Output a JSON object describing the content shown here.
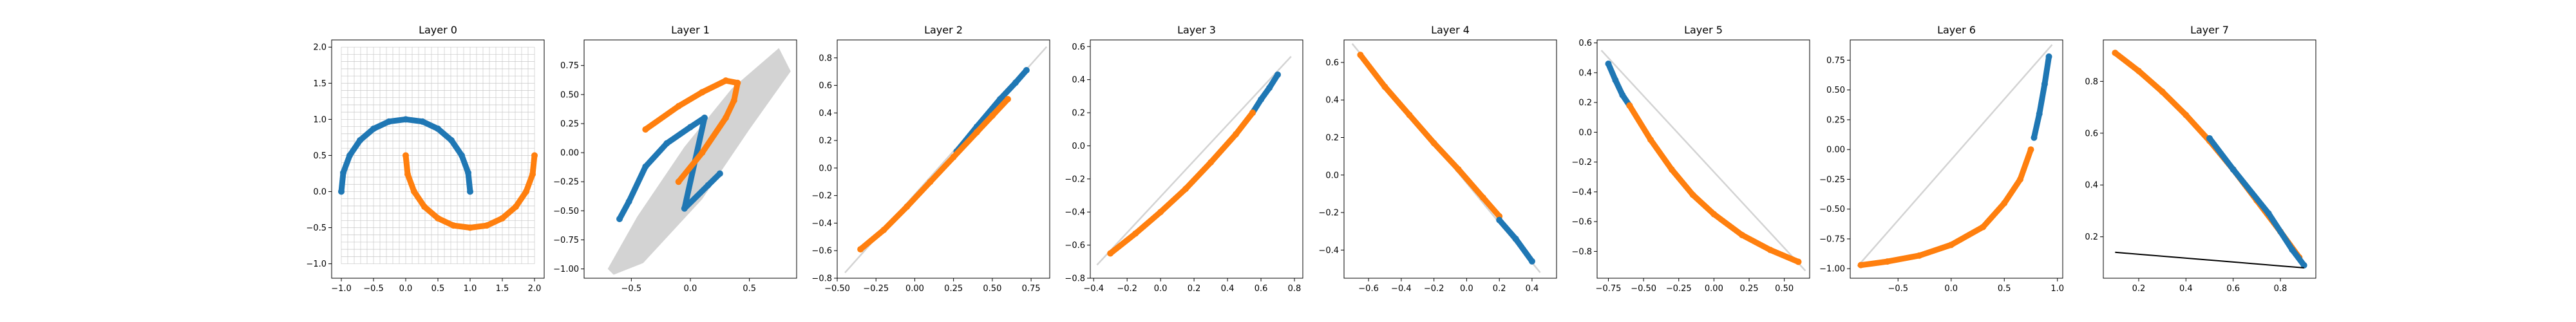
{
  "figure": {
    "background": "#ffffff"
  },
  "colors": {
    "class_a": "#1f77b4",
    "class_b": "#ff7f0e",
    "warped_region": "#d3d3d3",
    "grid": "#c8c8c8",
    "decision_line": "#000000"
  },
  "chart_data": [
    {
      "type": "scatter",
      "title": "Layer 0",
      "xlim": [
        -1.15,
        2.15
      ],
      "ylim": [
        -1.2,
        2.1
      ],
      "xticks": [
        -1.0,
        -0.5,
        0.0,
        0.5,
        1.0,
        1.5,
        2.0
      ],
      "xtick_labels": [
        "−1.0",
        "−0.5",
        "0.0",
        "0.5",
        "1.0",
        "1.5",
        "2.0"
      ],
      "yticks": [
        -1.0,
        -0.5,
        0.0,
        0.5,
        1.0,
        1.5,
        2.0
      ],
      "ytick_labels": [
        "−1.0",
        "−0.5",
        "0.0",
        "0.5",
        "1.0",
        "1.5",
        "2.0"
      ],
      "grid": {
        "shown": true,
        "x_range": [
          -1.0,
          2.0
        ],
        "y_range": [
          -1.0,
          2.0
        ],
        "step": 0.1
      },
      "series": [
        {
          "class": "a",
          "points": [
            [
              -1.0,
              0.0
            ],
            [
              -0.97,
              0.26
            ],
            [
              -0.87,
              0.5
            ],
            [
              -0.71,
              0.71
            ],
            [
              -0.5,
              0.87
            ],
            [
              -0.26,
              0.97
            ],
            [
              0.0,
              1.0
            ],
            [
              0.26,
              0.97
            ],
            [
              0.5,
              0.87
            ],
            [
              0.71,
              0.71
            ],
            [
              0.87,
              0.5
            ],
            [
              0.97,
              0.26
            ],
            [
              1.0,
              0.0
            ]
          ]
        },
        {
          "class": "b",
          "points": [
            [
              0.0,
              0.5
            ],
            [
              0.03,
              0.24
            ],
            [
              0.13,
              0.0
            ],
            [
              0.29,
              -0.21
            ],
            [
              0.5,
              -0.37
            ],
            [
              0.74,
              -0.47
            ],
            [
              1.0,
              -0.5
            ],
            [
              1.26,
              -0.47
            ],
            [
              1.5,
              -0.37
            ],
            [
              1.71,
              -0.21
            ],
            [
              1.87,
              0.0
            ],
            [
              1.97,
              0.24
            ],
            [
              2.0,
              0.5
            ]
          ]
        }
      ]
    },
    {
      "type": "scatter",
      "title": "Layer 1",
      "xlim": [
        -0.9,
        0.9
      ],
      "ylim": [
        -1.08,
        0.97
      ],
      "xticks": [
        -0.5,
        0.0,
        0.5
      ],
      "xtick_labels": [
        "−0.5",
        "0.0",
        "0.5"
      ],
      "yticks": [
        -1.0,
        -0.75,
        -0.5,
        -0.25,
        0.0,
        0.25,
        0.5,
        0.75
      ],
      "ytick_labels": [
        "−1.00",
        "−0.75",
        "−0.50",
        "−0.25",
        "0.00",
        "0.25",
        "0.50",
        "0.75"
      ],
      "region": [
        [
          -0.7,
          -1.0
        ],
        [
          -0.45,
          -0.55
        ],
        [
          -0.05,
          0.05
        ],
        [
          0.35,
          0.55
        ],
        [
          0.75,
          0.9
        ],
        [
          0.85,
          0.7
        ],
        [
          0.5,
          0.2
        ],
        [
          0.1,
          -0.4
        ],
        [
          -0.4,
          -0.95
        ],
        [
          -0.65,
          -1.05
        ]
      ],
      "series": [
        {
          "class": "a",
          "points": [
            [
              -0.6,
              -0.57
            ],
            [
              -0.52,
              -0.42
            ],
            [
              -0.38,
              -0.12
            ],
            [
              -0.2,
              0.08
            ],
            [
              0.0,
              0.22
            ],
            [
              0.12,
              0.3
            ],
            [
              -0.05,
              -0.48
            ],
            [
              0.15,
              -0.28
            ],
            [
              0.25,
              -0.18
            ]
          ]
        },
        {
          "class": "b",
          "points": [
            [
              -0.38,
              0.2
            ],
            [
              -0.1,
              0.4
            ],
            [
              0.1,
              0.52
            ],
            [
              0.3,
              0.62
            ],
            [
              0.4,
              0.6
            ],
            [
              0.37,
              0.45
            ],
            [
              0.3,
              0.3
            ],
            [
              0.1,
              0.0
            ],
            [
              -0.1,
              -0.25
            ]
          ]
        }
      ]
    },
    {
      "type": "scatter",
      "title": "Layer 2",
      "xlim": [
        -0.5,
        0.87
      ],
      "ylim": [
        -0.8,
        0.93
      ],
      "xticks": [
        -0.5,
        -0.25,
        0.0,
        0.25,
        0.5,
        0.75
      ],
      "xtick_labels": [
        "−0.50",
        "−0.25",
        "0.00",
        "0.25",
        "0.50",
        "0.75"
      ],
      "yticks": [
        -0.8,
        -0.6,
        -0.4,
        -0.2,
        0.0,
        0.2,
        0.4,
        0.6,
        0.8
      ],
      "ytick_labels": [
        "−0.8",
        "−0.6",
        "−0.4",
        "−0.2",
        "0.0",
        "0.2",
        "0.4",
        "0.6",
        "0.8"
      ],
      "region": [
        [
          -0.45,
          -0.76
        ],
        [
          0.85,
          0.88
        ]
      ],
      "series": [
        {
          "class": "a",
          "points": [
            [
              0.27,
              0.12
            ],
            [
              0.4,
              0.3
            ],
            [
              0.55,
              0.5
            ],
            [
              0.65,
              0.62
            ],
            [
              0.72,
              0.71
            ]
          ]
        },
        {
          "class": "b",
          "points": [
            [
              -0.35,
              -0.59
            ],
            [
              -0.2,
              -0.45
            ],
            [
              -0.05,
              -0.28
            ],
            [
              0.1,
              -0.1
            ],
            [
              0.25,
              0.08
            ],
            [
              0.4,
              0.26
            ],
            [
              0.5,
              0.38
            ],
            [
              0.6,
              0.5
            ]
          ]
        }
      ]
    },
    {
      "type": "scatter",
      "title": "Layer 3",
      "xlim": [
        -0.42,
        0.85
      ],
      "ylim": [
        -0.8,
        0.64
      ],
      "xticks": [
        -0.4,
        -0.2,
        0.0,
        0.2,
        0.4,
        0.6,
        0.8
      ],
      "xtick_labels": [
        "−0.4",
        "−0.2",
        "0.0",
        "0.2",
        "0.4",
        "0.6",
        "0.8"
      ],
      "yticks": [
        -0.8,
        -0.6,
        -0.4,
        -0.2,
        0.0,
        0.2,
        0.4,
        0.6
      ],
      "ytick_labels": [
        "−0.8",
        "−0.6",
        "−0.4",
        "−0.2",
        "0.0",
        "0.2",
        "0.4",
        "0.6"
      ],
      "region": [
        [
          -0.38,
          -0.72
        ],
        [
          0.78,
          0.54
        ]
      ],
      "series": [
        {
          "class": "a",
          "points": [
            [
              0.55,
              0.2
            ],
            [
              0.6,
              0.28
            ],
            [
              0.65,
              0.35
            ],
            [
              0.7,
              0.43
            ]
          ]
        },
        {
          "class": "b",
          "points": [
            [
              -0.3,
              -0.65
            ],
            [
              -0.15,
              -0.53
            ],
            [
              0.0,
              -0.4
            ],
            [
              0.15,
              -0.26
            ],
            [
              0.3,
              -0.1
            ],
            [
              0.45,
              0.07
            ],
            [
              0.55,
              0.2
            ]
          ]
        }
      ]
    },
    {
      "type": "scatter",
      "title": "Layer 4",
      "xlim": [
        -0.75,
        0.55
      ],
      "ylim": [
        -0.55,
        0.72
      ],
      "xticks": [
        -0.6,
        -0.4,
        -0.2,
        0.0,
        0.2,
        0.4
      ],
      "xtick_labels": [
        "−0.6",
        "−0.4",
        "−0.2",
        "0.0",
        "0.2",
        "0.4"
      ],
      "yticks": [
        -0.4,
        -0.2,
        0.0,
        0.2,
        0.4,
        0.6
      ],
      "ytick_labels": [
        "−0.4",
        "−0.2",
        "0.0",
        "0.2",
        "0.4",
        "0.6"
      ],
      "region": [
        [
          -0.7,
          0.7
        ],
        [
          0.45,
          -0.52
        ]
      ],
      "series": [
        {
          "class": "b",
          "points": [
            [
              -0.65,
              0.64
            ],
            [
              -0.5,
              0.47
            ],
            [
              -0.35,
              0.32
            ],
            [
              -0.2,
              0.17
            ],
            [
              -0.05,
              0.03
            ],
            [
              0.1,
              -0.12
            ],
            [
              0.2,
              -0.22
            ]
          ]
        },
        {
          "class": "a",
          "points": [
            [
              0.2,
              -0.24
            ],
            [
              0.3,
              -0.34
            ],
            [
              0.4,
              -0.46
            ]
          ]
        }
      ]
    },
    {
      "type": "scatter",
      "title": "Layer 5",
      "xlim": [
        -0.83,
        0.68
      ],
      "ylim": [
        -0.98,
        0.62
      ],
      "xticks": [
        -0.75,
        -0.5,
        -0.25,
        0.0,
        0.25,
        0.5
      ],
      "xtick_labels": [
        "−0.75",
        "−0.50",
        "−0.25",
        "0.00",
        "0.25",
        "0.50"
      ],
      "yticks": [
        -0.8,
        -0.6,
        -0.4,
        -0.2,
        0.0,
        0.2,
        0.4,
        0.6
      ],
      "ytick_labels": [
        "−0.8",
        "−0.6",
        "−0.4",
        "−0.2",
        "0.0",
        "0.2",
        "0.4",
        "0.6"
      ],
      "region": [
        [
          -0.8,
          0.55
        ],
        [
          0.65,
          -0.93
        ]
      ],
      "series": [
        {
          "class": "a",
          "points": [
            [
              -0.75,
              0.46
            ],
            [
              -0.7,
              0.35
            ],
            [
              -0.65,
              0.25
            ],
            [
              -0.6,
              0.18
            ]
          ]
        },
        {
          "class": "b",
          "points": [
            [
              -0.6,
              0.18
            ],
            [
              -0.45,
              -0.05
            ],
            [
              -0.3,
              -0.25
            ],
            [
              -0.15,
              -0.42
            ],
            [
              0.0,
              -0.55
            ],
            [
              0.2,
              -0.69
            ],
            [
              0.4,
              -0.79
            ],
            [
              0.6,
              -0.87
            ]
          ]
        }
      ]
    },
    {
      "type": "scatter",
      "title": "Layer 6",
      "xlim": [
        -0.95,
        1.05
      ],
      "ylim": [
        -1.08,
        0.92
      ],
      "xticks": [
        -0.5,
        0.0,
        0.5,
        1.0
      ],
      "xtick_labels": [
        "−0.5",
        "0.0",
        "0.5",
        "1.0"
      ],
      "yticks": [
        -1.0,
        -0.75,
        -0.5,
        -0.25,
        0.0,
        0.25,
        0.5,
        0.75
      ],
      "ytick_labels": [
        "−1.00",
        "−0.75",
        "−0.50",
        "−0.25",
        "0.00",
        "0.25",
        "0.50",
        "0.75"
      ],
      "region": [
        [
          -0.88,
          -0.98
        ],
        [
          0.95,
          0.88
        ]
      ],
      "series": [
        {
          "class": "b",
          "points": [
            [
              -0.85,
              -0.97
            ],
            [
              -0.6,
              -0.94
            ],
            [
              -0.3,
              -0.89
            ],
            [
              0.0,
              -0.8
            ],
            [
              0.3,
              -0.65
            ],
            [
              0.5,
              -0.45
            ],
            [
              0.65,
              -0.25
            ],
            [
              0.75,
              0.0
            ]
          ]
        },
        {
          "class": "a",
          "points": [
            [
              0.78,
              0.1
            ],
            [
              0.83,
              0.3
            ],
            [
              0.88,
              0.55
            ],
            [
              0.92,
              0.78
            ]
          ]
        }
      ]
    },
    {
      "type": "scatter",
      "title": "Layer 7",
      "xlim": [
        0.05,
        0.95
      ],
      "ylim": [
        0.04,
        0.96
      ],
      "xticks": [
        0.2,
        0.4,
        0.6,
        0.8
      ],
      "xtick_labels": [
        "0.2",
        "0.4",
        "0.6",
        "0.8"
      ],
      "yticks": [
        0.2,
        0.4,
        0.6,
        0.8
      ],
      "ytick_labels": [
        "0.2",
        "0.4",
        "0.6",
        "0.8"
      ],
      "decision_line": [
        [
          0.1,
          0.14
        ],
        [
          0.9,
          0.08
        ]
      ],
      "series": [
        {
          "class": "b",
          "points": [
            [
              0.1,
              0.91
            ],
            [
              0.2,
              0.84
            ],
            [
              0.3,
              0.76
            ],
            [
              0.4,
              0.67
            ],
            [
              0.5,
              0.57
            ],
            [
              0.6,
              0.46
            ],
            [
              0.7,
              0.34
            ],
            [
              0.8,
              0.22
            ],
            [
              0.88,
              0.12
            ]
          ]
        },
        {
          "class": "a",
          "points": [
            [
              0.5,
              0.58
            ],
            [
              0.6,
              0.46
            ],
            [
              0.75,
              0.29
            ],
            [
              0.85,
              0.15
            ],
            [
              0.9,
              0.09
            ]
          ]
        }
      ]
    }
  ]
}
